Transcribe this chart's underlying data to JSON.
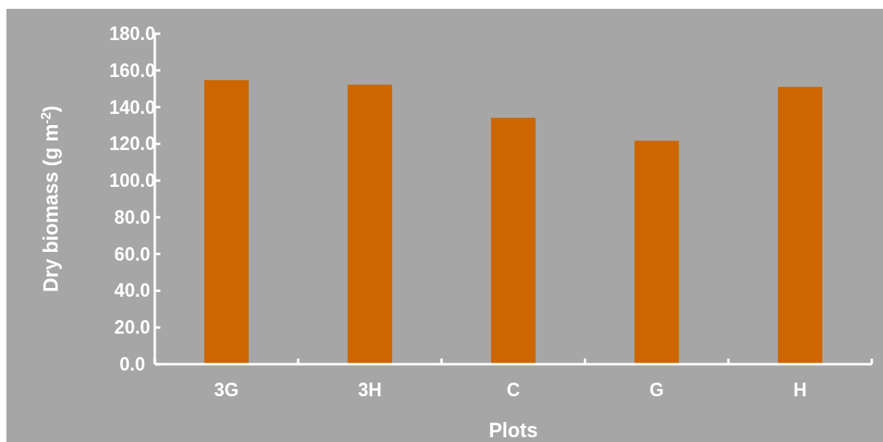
{
  "chart_data": {
    "type": "bar",
    "xlabel": "Plots",
    "ylabel": "Dry biomass (g m$^{-2}$)",
    "categories": [
      "3G",
      "3H",
      "C",
      "G",
      "H"
    ],
    "values": [
      154.7,
      152.2,
      134.2,
      121.7,
      151.0
    ],
    "color": "#cc6600",
    "ylim": [
      0,
      180
    ],
    "yticks": [
      {
        "value": 0,
        "label": "0.0"
      },
      {
        "value": 20,
        "label": "20.0"
      },
      {
        "value": 40,
        "label": "40.0"
      },
      {
        "value": 60,
        "label": "60.0"
      },
      {
        "value": 80,
        "label": "80.0"
      },
      {
        "value": 100,
        "label": "100.0"
      },
      {
        "value": 120,
        "label": "120.0"
      },
      {
        "value": 140,
        "label": "140.0"
      },
      {
        "value": 160,
        "label": "160.0"
      },
      {
        "value": 180,
        "label": "180.0"
      }
    ],
    "grid": false
  }
}
